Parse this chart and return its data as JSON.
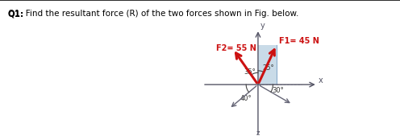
{
  "title": "Q1: Find the resultant force (R) of the two forces shown in Fig. below.",
  "title_fontsize": 7.5,
  "diagram_bg": "#c8d8e8",
  "outer_bg": "#ffffff",
  "f1_label": "F1= 45 N",
  "f2_label": "F2= 55 N",
  "f1_color": "#cc1111",
  "f2_color": "#cc1111",
  "axis_color": "#555566",
  "dark_gray": "#444444",
  "fig_bg": "#d8d8d8",
  "angle_label_color": "#333333",
  "shaded_fill": "#b8cfe0"
}
